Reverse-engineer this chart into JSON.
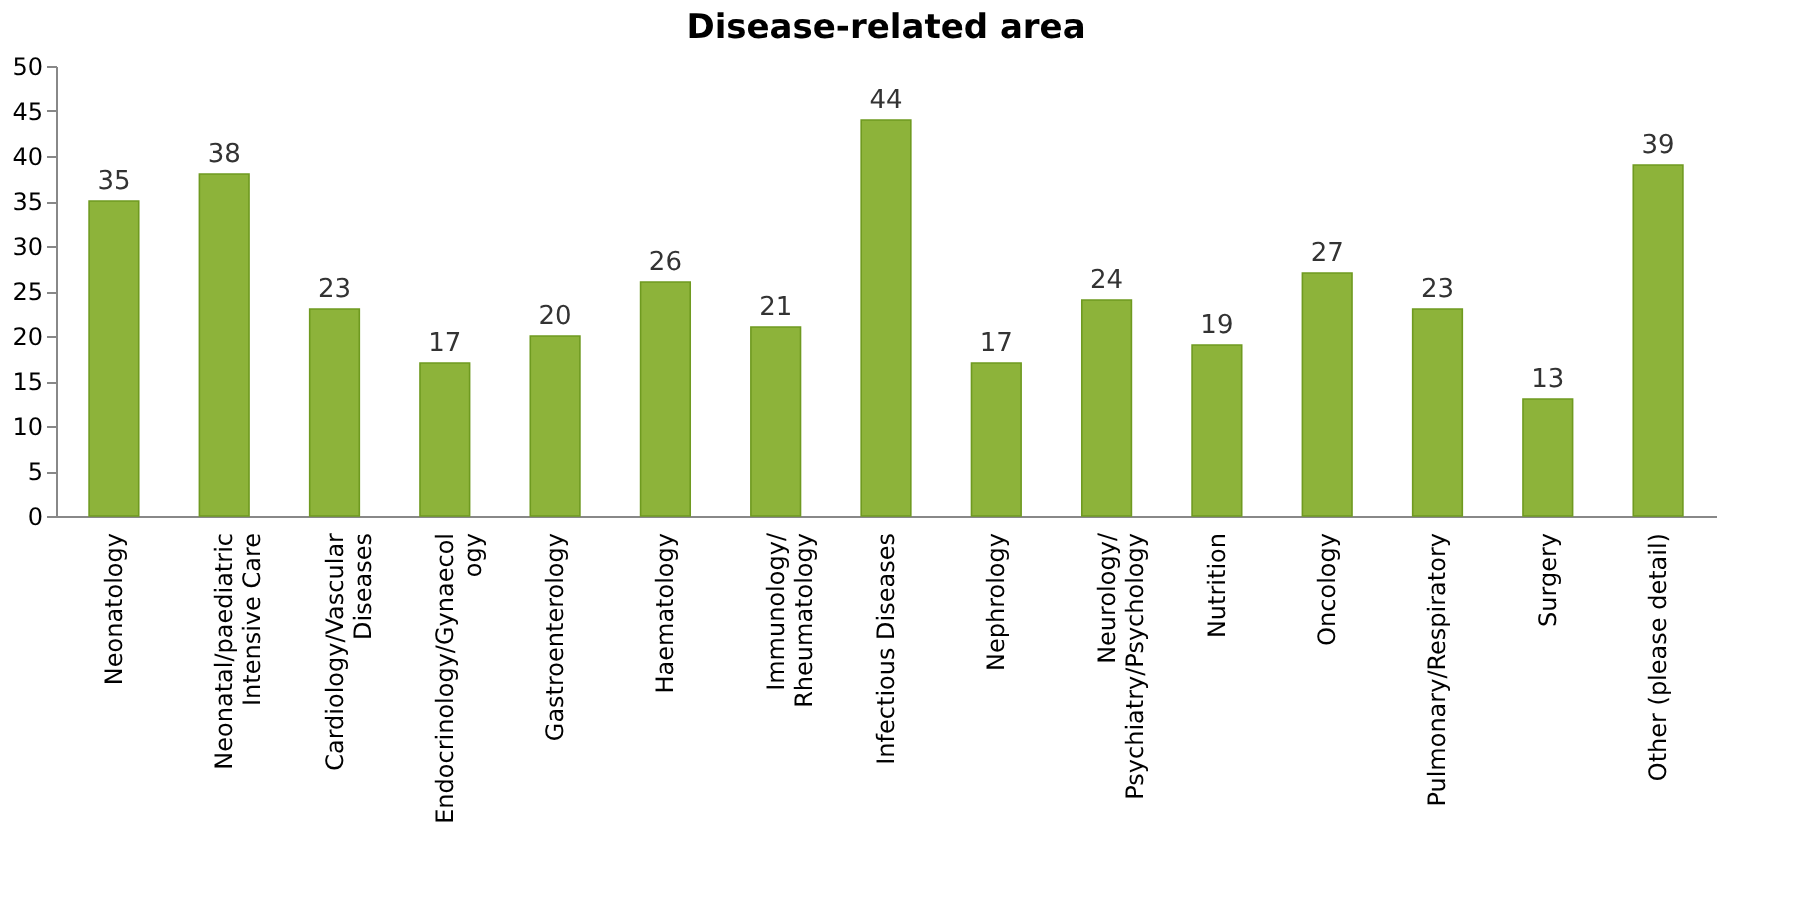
{
  "chart_data": {
    "type": "bar",
    "title": "Disease-related area",
    "categories": [
      "Neonatology",
      "Neonatal/paediatric Intensive Care",
      "Cardiology/Vascular Diseases",
      "Endocrinology/Gynaecology",
      "Gastroenterology",
      "Haematology",
      "Immunology/ Rheumatology",
      "Infectious Diseases",
      "Nephrology",
      "Neurology/ Psychiatry/Psychology",
      "Nutrition",
      "Oncology",
      "Pulmonary/Respiratory",
      "Surgery",
      "Other (please detail)"
    ],
    "values": [
      35,
      38,
      23,
      17,
      20,
      26,
      21,
      44,
      17,
      24,
      19,
      27,
      23,
      13,
      39
    ],
    "color": "#8db33a",
    "ylim": [
      0,
      50
    ],
    "yticks": [
      0,
      5,
      10,
      15,
      20,
      25,
      30,
      35,
      40,
      45,
      50
    ],
    "grid": false,
    "data_labels": true
  }
}
